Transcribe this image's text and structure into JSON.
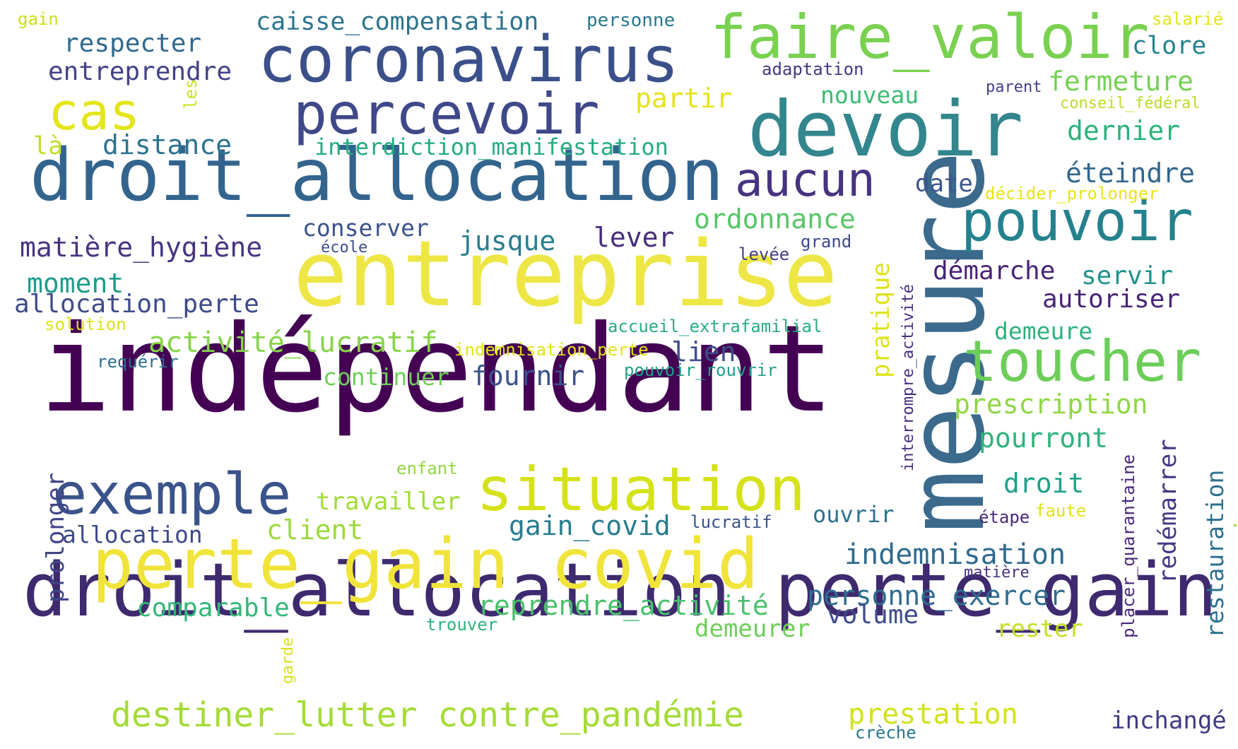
{
  "words": [
    {
      "text": "indépendant",
      "color": "#440154"
    },
    {
      "text": "droit_allocation perte_gain",
      "color": "#3e2a6e"
    },
    {
      "text": "entreprise",
      "color": "#ede645"
    },
    {
      "text": "mesure",
      "color": "#3b6a8c"
    },
    {
      "text": "droit_allocation",
      "color": "#32648e"
    },
    {
      "text": "perte_gain covid",
      "color": "#f0e43a"
    },
    {
      "text": "devoir",
      "color": "#33868d"
    },
    {
      "text": "coronavirus",
      "color": "#3b508a"
    },
    {
      "text": "faire_valoir",
      "color": "#7ad151"
    },
    {
      "text": "situation",
      "color": "#d5e21a"
    },
    {
      "text": "toucher",
      "color": "#6cce59"
    },
    {
      "text": "percevoir",
      "color": "#3f4889"
    },
    {
      "text": "pouvoir",
      "color": "#26818e"
    },
    {
      "text": "exemple",
      "color": "#3a538b"
    },
    {
      "text": "aucun",
      "color": "#463480"
    },
    {
      "text": "cas",
      "color": "#e4e51a"
    },
    {
      "text": "destiner_lutter contre_pandémie",
      "color": "#a5db36"
    },
    {
      "text": "respecter",
      "color": "#30698e"
    },
    {
      "text": "entreprendre",
      "color": "#414287"
    },
    {
      "text": "caisse_compensation",
      "color": "#2c738e"
    },
    {
      "text": "personne",
      "color": "#2a788e"
    },
    {
      "text": "gain",
      "color": "#c8e020"
    },
    {
      "text": "salarié",
      "color": "#e2e418"
    },
    {
      "text": "clore",
      "color": "#26828e"
    },
    {
      "text": "adaptation",
      "color": "#453882"
    },
    {
      "text": "fermeture",
      "color": "#75d054"
    },
    {
      "text": "parent",
      "color": "#424086"
    },
    {
      "text": "conseil_fédéral",
      "color": "#b8de29"
    },
    {
      "text": "partir",
      "color": "#e5e419"
    },
    {
      "text": "nouveau",
      "color": "#3dbc74"
    },
    {
      "text": "dernier",
      "color": "#2db27d"
    },
    {
      "text": "les",
      "color": "#cae11f"
    },
    {
      "text": "là",
      "color": "#c0df25"
    },
    {
      "text": "distance",
      "color": "#2c738e"
    },
    {
      "text": "interdiction_manifestation",
      "color": "#25ab82"
    },
    {
      "text": "éteindre",
      "color": "#31668e"
    },
    {
      "text": "date",
      "color": "#3a548c"
    },
    {
      "text": "décider_prolonger",
      "color": "#e7e419"
    },
    {
      "text": "ordonnance",
      "color": "#56c667"
    },
    {
      "text": "conserver",
      "color": "#3b528b"
    },
    {
      "text": "jusque",
      "color": "#287d8e"
    },
    {
      "text": "lever",
      "color": "#472d7b"
    },
    {
      "text": "matière_hygiène",
      "color": "#463480"
    },
    {
      "text": "école",
      "color": "#3d4e8a"
    },
    {
      "text": "grand",
      "color": "#3e4989"
    },
    {
      "text": "levée",
      "color": "#433e85"
    },
    {
      "text": "pratique",
      "color": "#dde318"
    },
    {
      "text": "interrompre_activité",
      "color": "#46307e"
    },
    {
      "text": "démarche",
      "color": "#482475"
    },
    {
      "text": "servir",
      "color": "#20928c"
    },
    {
      "text": "moment",
      "color": "#1e9c89"
    },
    {
      "text": "allocation_perte",
      "color": "#3e4a89"
    },
    {
      "text": "autoriser",
      "color": "#482576"
    },
    {
      "text": "solution",
      "color": "#dae319"
    },
    {
      "text": "accueil_extrafamilial",
      "color": "#28ae80"
    },
    {
      "text": "demeure",
      "color": "#2db27d"
    },
    {
      "text": "activité_lucratif",
      "color": "#86d549"
    },
    {
      "text": "indemnisation_perte",
      "color": "#e0e31a"
    },
    {
      "text": "lien",
      "color": "#3e4c8a"
    },
    {
      "text": "requérir",
      "color": "#2e6e8e"
    },
    {
      "text": "continuer",
      "color": "#6ece58"
    },
    {
      "text": "fournir",
      "color": "#3b528b"
    },
    {
      "text": "pouvoir_rouvrir",
      "color": "#1fa088"
    },
    {
      "text": "prescription",
      "color": "#8fd744"
    },
    {
      "text": "pourront",
      "color": "#2eb37c"
    },
    {
      "text": "enfant",
      "color": "#93d741"
    },
    {
      "text": "droit",
      "color": "#1fa188"
    },
    {
      "text": "redémarrer",
      "color": "#443983"
    },
    {
      "text": "restauration",
      "color": "#2d708e"
    },
    {
      "text": "jour",
      "color": "#a2da37"
    },
    {
      "text": "travailler",
      "color": "#a2da37"
    },
    {
      "text": "client",
      "color": "#9dd93b"
    },
    {
      "text": "gain_covid",
      "color": "#287c8e"
    },
    {
      "text": "lucratif",
      "color": "#3b528b"
    },
    {
      "text": "ouvrir",
      "color": "#2c718e"
    },
    {
      "text": "étape",
      "color": "#482979"
    },
    {
      "text": "faute",
      "color": "#dde318"
    },
    {
      "text": "placer_quarantaine",
      "color": "#482878"
    },
    {
      "text": "prolonger",
      "color": "#414487"
    },
    {
      "text": "allocation",
      "color": "#3e4989"
    },
    {
      "text": "indemnisation",
      "color": "#306a8e"
    },
    {
      "text": "matière",
      "color": "#46327e"
    },
    {
      "text": "comparable",
      "color": "#35b779"
    },
    {
      "text": "reprendre_activité",
      "color": "#4ac16d"
    },
    {
      "text": "personne_exercer",
      "color": "#2f6c8e"
    },
    {
      "text": "volume",
      "color": "#3e4c8a"
    },
    {
      "text": "trouver",
      "color": "#2db27d"
    },
    {
      "text": "demeurer",
      "color": "#6ece58"
    },
    {
      "text": "rester",
      "color": "#c2df23"
    },
    {
      "text": "garde",
      "color": "#d8e219"
    },
    {
      "text": "prestation",
      "color": "#d2e21b"
    },
    {
      "text": "inchangé",
      "color": "#3e3a83"
    },
    {
      "text": "crèche",
      "color": "#2a788e"
    }
  ]
}
